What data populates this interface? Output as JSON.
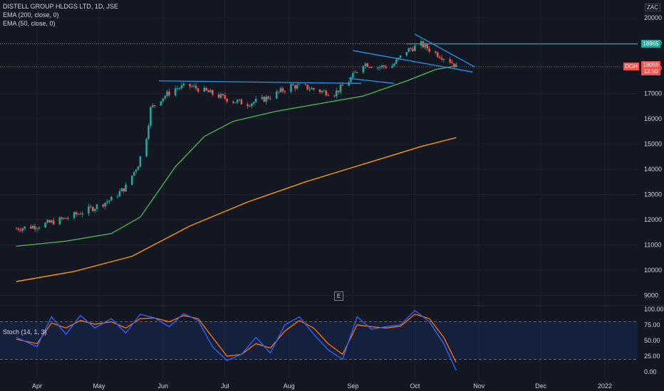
{
  "header": {
    "symbol_line": "DISTELL GROUP HLDGS LTD, 1D, JSE",
    "ema200_label": "EMA (200, close, 0)",
    "ema50_label": "EMA (50, close, 0)",
    "currency": "ZAC"
  },
  "price_tag": {
    "ticker": "DGH",
    "price": "18059",
    "countdown": "13:50"
  },
  "level_tag": {
    "value": "18965"
  },
  "stoch_label": "Stoch (14, 1, 3)",
  "e_button": "E",
  "colors": {
    "up": "#26a69a",
    "down": "#ef5350",
    "ema50": "#4caf50",
    "ema200": "#ff9800",
    "trend": "#2196f3",
    "level": "#26a69a",
    "stoch_k": "#2962ff",
    "stoch_d": "#ff6d00"
  },
  "chart_data": [
    {
      "type": "candlestick",
      "title": "DISTELL GROUP HLDGS LTD, 1D, JSE",
      "y_axis_ticks": [
        9000,
        10000,
        11000,
        12000,
        13000,
        14000,
        15000,
        16000,
        17000,
        18000,
        19000,
        20000
      ],
      "ylim": [
        8800,
        20500
      ],
      "x_axis_labels": [
        "Apr",
        "May",
        "Jun",
        "Jul",
        "Aug",
        "Sep",
        "Oct",
        "Nov",
        "Dec",
        "2022"
      ],
      "last_price": 18059,
      "horizontal_level": 18965,
      "close_series": [
        {
          "date": "2021-03-22",
          "close": 11650
        },
        {
          "date": "2021-04-01",
          "close": 11750
        },
        {
          "date": "2021-04-15",
          "close": 12050
        },
        {
          "date": "2021-04-29",
          "close": 12500
        },
        {
          "date": "2021-05-07",
          "close": 12800
        },
        {
          "date": "2021-05-14",
          "close": 13300
        },
        {
          "date": "2021-05-20",
          "close": 14200
        },
        {
          "date": "2021-05-24",
          "close": 15300
        },
        {
          "date": "2021-05-26",
          "close": 16400
        },
        {
          "date": "2021-05-31",
          "close": 16800
        },
        {
          "date": "2021-06-07",
          "close": 17200
        },
        {
          "date": "2021-06-14",
          "close": 17300
        },
        {
          "date": "2021-06-21",
          "close": 17100
        },
        {
          "date": "2021-06-28",
          "close": 16900
        },
        {
          "date": "2021-07-05",
          "close": 16700
        },
        {
          "date": "2021-07-12",
          "close": 16600
        },
        {
          "date": "2021-07-19",
          "close": 16750
        },
        {
          "date": "2021-07-26",
          "close": 17000
        },
        {
          "date": "2021-08-02",
          "close": 17300
        },
        {
          "date": "2021-08-09",
          "close": 17250
        },
        {
          "date": "2021-08-16",
          "close": 17100
        },
        {
          "date": "2021-08-23",
          "close": 17000
        },
        {
          "date": "2021-08-30",
          "close": 17500
        },
        {
          "date": "2021-09-06",
          "close": 18200
        },
        {
          "date": "2021-09-13",
          "close": 18050
        },
        {
          "date": "2021-09-20",
          "close": 18100
        },
        {
          "date": "2021-09-27",
          "close": 18700
        },
        {
          "date": "2021-10-04",
          "close": 18950
        },
        {
          "date": "2021-10-11",
          "close": 18600
        },
        {
          "date": "2021-10-18",
          "close": 18300
        },
        {
          "date": "2021-10-21",
          "close": 18059
        }
      ],
      "ema50_series": [
        {
          "date": "2021-03-22",
          "value": 10950
        },
        {
          "date": "2021-04-15",
          "value": 11150
        },
        {
          "date": "2021-05-07",
          "value": 11450
        },
        {
          "date": "2021-05-21",
          "value": 12100
        },
        {
          "date": "2021-06-07",
          "value": 14100
        },
        {
          "date": "2021-06-21",
          "value": 15300
        },
        {
          "date": "2021-07-05",
          "value": 15900
        },
        {
          "date": "2021-07-26",
          "value": 16300
        },
        {
          "date": "2021-08-16",
          "value": 16600
        },
        {
          "date": "2021-09-06",
          "value": 16900
        },
        {
          "date": "2021-09-27",
          "value": 17500
        },
        {
          "date": "2021-10-11",
          "value": 17950
        },
        {
          "date": "2021-10-21",
          "value": 18100
        }
      ],
      "ema200_series": [
        {
          "date": "2021-03-22",
          "value": 9550
        },
        {
          "date": "2021-04-19",
          "value": 9950
        },
        {
          "date": "2021-05-17",
          "value": 10550
        },
        {
          "date": "2021-06-14",
          "value": 11750
        },
        {
          "date": "2021-07-12",
          "value": 12700
        },
        {
          "date": "2021-08-09",
          "value": 13500
        },
        {
          "date": "2021-09-06",
          "value": 14200
        },
        {
          "date": "2021-10-04",
          "value": 14900
        },
        {
          "date": "2021-10-21",
          "value": 15250
        }
      ],
      "trendlines": [
        {
          "from": {
            "date": "2021-05-30",
            "price": 17500
          },
          "to": {
            "date": "2021-09-05",
            "price": 17400
          }
        },
        {
          "from": {
            "date": "2021-08-30",
            "price": 17600
          },
          "to": {
            "date": "2021-09-21",
            "price": 17400
          }
        },
        {
          "from": {
            "date": "2021-09-01",
            "price": 18700
          },
          "to": {
            "date": "2021-10-29",
            "price": 17850
          }
        },
        {
          "from": {
            "date": "2021-10-01",
            "price": 19350
          },
          "to": {
            "date": "2021-10-30",
            "price": 18050
          }
        }
      ]
    },
    {
      "type": "line",
      "title": "Stoch (14, 1, 3)",
      "y_axis_ticks": [
        0,
        25,
        50,
        75,
        100
      ],
      "y_tick_labels": [
        "0.00",
        "25.00",
        "50.00",
        "75.00",
        "100.00"
      ],
      "ylim": [
        -10,
        110
      ],
      "band": [
        20,
        80
      ],
      "series": [
        {
          "key": "k",
          "values": [
            {
              "date": "2021-03-22",
              "value": 55
            },
            {
              "date": "2021-04-01",
              "value": 40
            },
            {
              "date": "2021-04-08",
              "value": 88
            },
            {
              "date": "2021-04-15",
              "value": 60
            },
            {
              "date": "2021-04-22",
              "value": 90
            },
            {
              "date": "2021-04-29",
              "value": 70
            },
            {
              "date": "2021-05-07",
              "value": 85
            },
            {
              "date": "2021-05-14",
              "value": 62
            },
            {
              "date": "2021-05-21",
              "value": 92
            },
            {
              "date": "2021-05-28",
              "value": 86
            },
            {
              "date": "2021-06-04",
              "value": 72
            },
            {
              "date": "2021-06-11",
              "value": 93
            },
            {
              "date": "2021-06-18",
              "value": 82
            },
            {
              "date": "2021-06-25",
              "value": 40
            },
            {
              "date": "2021-07-02",
              "value": 18
            },
            {
              "date": "2021-07-09",
              "value": 28
            },
            {
              "date": "2021-07-16",
              "value": 55
            },
            {
              "date": "2021-07-23",
              "value": 30
            },
            {
              "date": "2021-07-30",
              "value": 75
            },
            {
              "date": "2021-08-06",
              "value": 88
            },
            {
              "date": "2021-08-13",
              "value": 60
            },
            {
              "date": "2021-08-20",
              "value": 35
            },
            {
              "date": "2021-08-27",
              "value": 20
            },
            {
              "date": "2021-09-03",
              "value": 88
            },
            {
              "date": "2021-09-10",
              "value": 68
            },
            {
              "date": "2021-09-17",
              "value": 72
            },
            {
              "date": "2021-09-24",
              "value": 75
            },
            {
              "date": "2021-10-01",
              "value": 98
            },
            {
              "date": "2021-10-08",
              "value": 80
            },
            {
              "date": "2021-10-15",
              "value": 45
            },
            {
              "date": "2021-10-21",
              "value": 2
            }
          ]
        },
        {
          "key": "d",
          "values": [
            {
              "date": "2021-03-22",
              "value": 52
            },
            {
              "date": "2021-04-01",
              "value": 45
            },
            {
              "date": "2021-04-08",
              "value": 78
            },
            {
              "date": "2021-04-15",
              "value": 70
            },
            {
              "date": "2021-04-22",
              "value": 82
            },
            {
              "date": "2021-04-29",
              "value": 76
            },
            {
              "date": "2021-05-07",
              "value": 80
            },
            {
              "date": "2021-05-14",
              "value": 70
            },
            {
              "date": "2021-05-21",
              "value": 85
            },
            {
              "date": "2021-05-28",
              "value": 86
            },
            {
              "date": "2021-06-04",
              "value": 80
            },
            {
              "date": "2021-06-11",
              "value": 90
            },
            {
              "date": "2021-06-18",
              "value": 85
            },
            {
              "date": "2021-06-25",
              "value": 55
            },
            {
              "date": "2021-07-02",
              "value": 25
            },
            {
              "date": "2021-07-09",
              "value": 28
            },
            {
              "date": "2021-07-16",
              "value": 45
            },
            {
              "date": "2021-07-23",
              "value": 38
            },
            {
              "date": "2021-07-30",
              "value": 65
            },
            {
              "date": "2021-08-06",
              "value": 82
            },
            {
              "date": "2021-08-13",
              "value": 70
            },
            {
              "date": "2021-08-20",
              "value": 45
            },
            {
              "date": "2021-08-27",
              "value": 28
            },
            {
              "date": "2021-09-03",
              "value": 75
            },
            {
              "date": "2021-09-10",
              "value": 72
            },
            {
              "date": "2021-09-17",
              "value": 70
            },
            {
              "date": "2021-09-24",
              "value": 73
            },
            {
              "date": "2021-10-01",
              "value": 92
            },
            {
              "date": "2021-10-08",
              "value": 85
            },
            {
              "date": "2021-10-15",
              "value": 55
            },
            {
              "date": "2021-10-21",
              "value": 15
            }
          ]
        }
      ]
    }
  ]
}
